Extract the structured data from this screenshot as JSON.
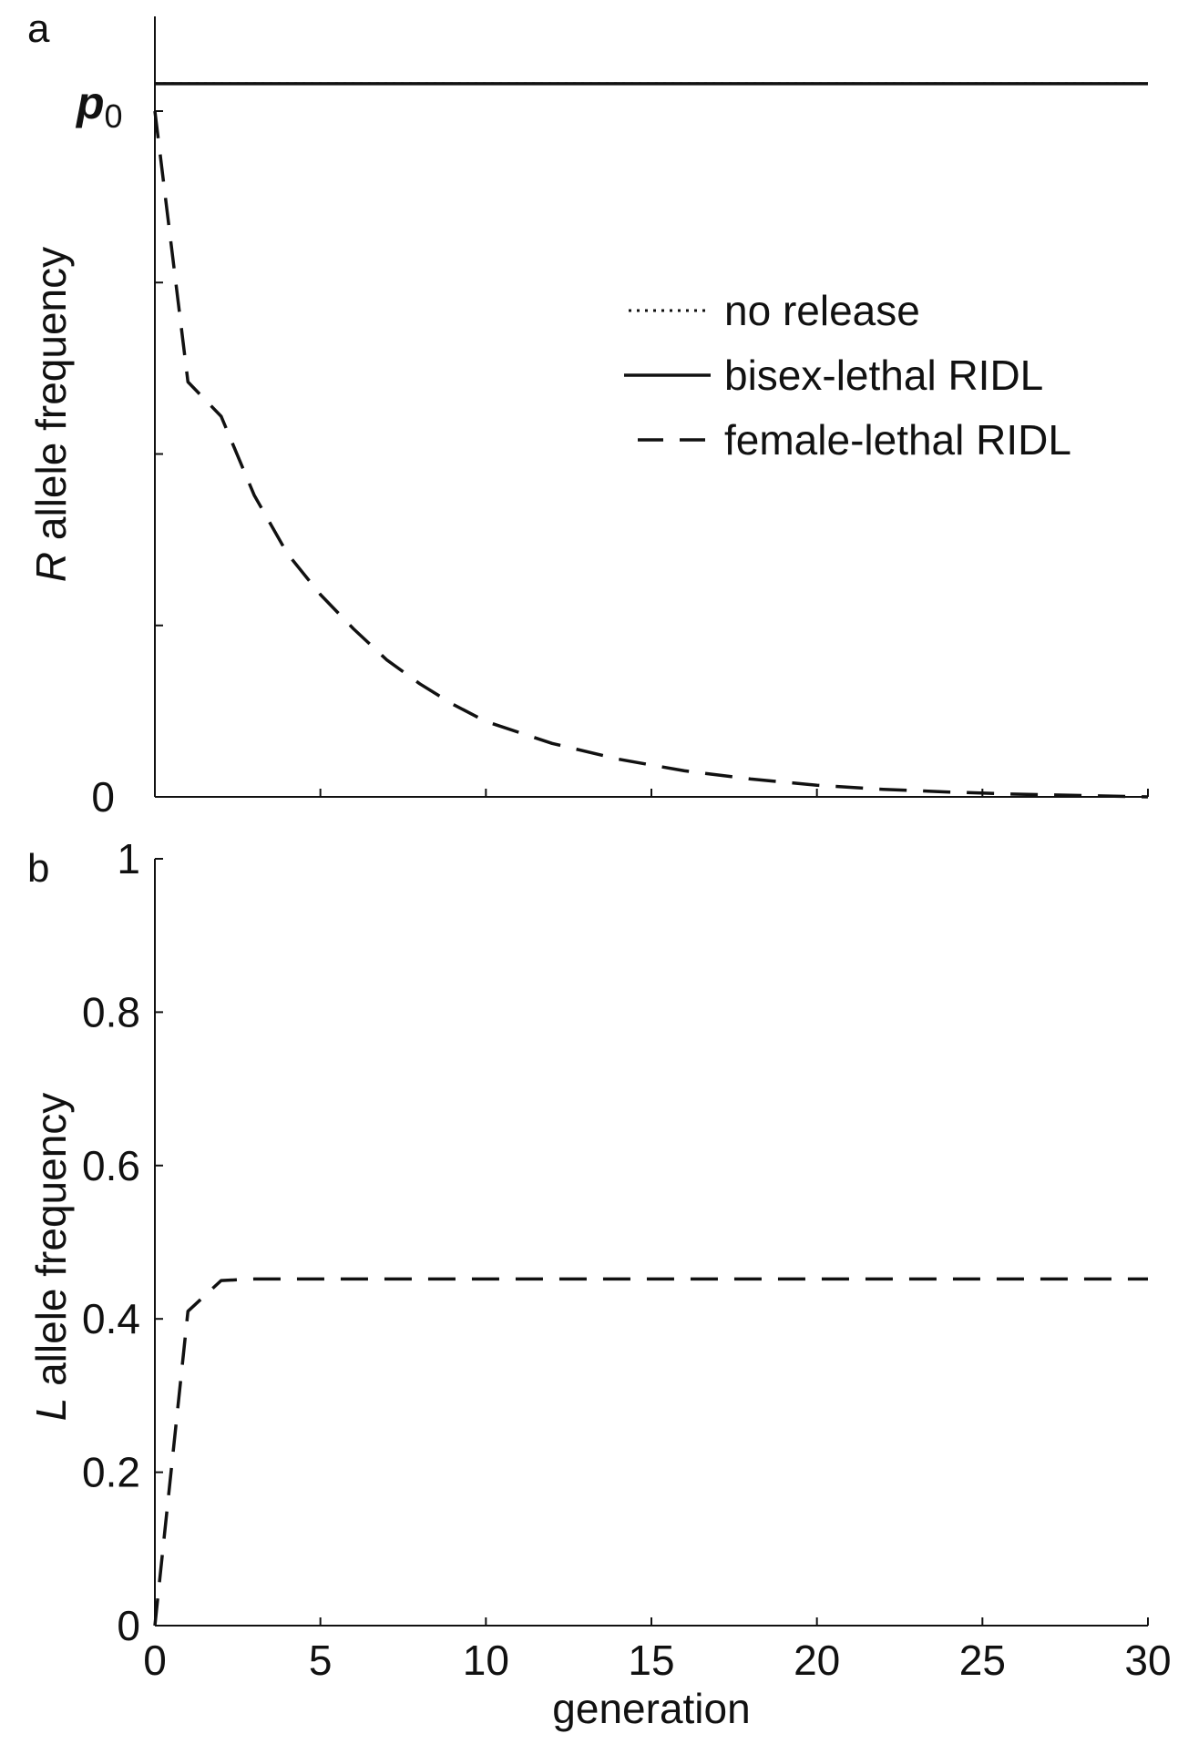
{
  "chart_data": [
    {
      "panel_label": "a",
      "type": "line",
      "ylabel_italic": "R",
      "ylabel_rest": " allele frequency",
      "xlim": [
        0,
        30
      ],
      "ylim_relative_to_p0": [
        0,
        1.04
      ],
      "y_tick_labels": {
        "zero": "0",
        "p0_symbol": "p",
        "p0_subscript": "0"
      },
      "x_ticks": [
        0,
        5,
        10,
        15,
        20,
        25,
        30
      ],
      "legend": {
        "placement": "center-right",
        "entries": [
          {
            "label": "no release",
            "style": "dotted"
          },
          {
            "label": "bisex-lethal RIDL",
            "style": "solid"
          },
          {
            "label": "female-lethal RIDL",
            "style": "dashed"
          }
        ]
      },
      "series": [
        {
          "name": "no release",
          "style": "dotted",
          "x": [
            0,
            30
          ],
          "y": [
            1.04,
            1.04
          ]
        },
        {
          "name": "bisex-lethal RIDL",
          "style": "solid",
          "x": [
            0,
            30
          ],
          "y": [
            1.04,
            1.04
          ]
        },
        {
          "name": "female-lethal RIDL",
          "style": "dashed",
          "x": [
            0,
            1,
            2,
            3,
            4,
            5,
            6,
            7,
            8,
            9,
            10,
            12,
            14,
            16,
            18,
            20,
            22,
            24,
            26,
            28,
            30
          ],
          "y": [
            1.0,
            0.605,
            0.555,
            0.44,
            0.355,
            0.295,
            0.245,
            0.2,
            0.165,
            0.135,
            0.11,
            0.078,
            0.055,
            0.038,
            0.026,
            0.017,
            0.011,
            0.007,
            0.004,
            0.002,
            0.0
          ]
        }
      ]
    },
    {
      "panel_label": "b",
      "type": "line",
      "ylabel_italic": "L",
      "ylabel_rest": " allele frequency",
      "xlabel": "generation",
      "xlim": [
        0,
        30
      ],
      "ylim": [
        0,
        1
      ],
      "x_ticks": [
        0,
        5,
        10,
        15,
        20,
        25,
        30
      ],
      "x_tick_labels": [
        "0",
        "5",
        "10",
        "15",
        "20",
        "25",
        "30"
      ],
      "y_ticks": [
        0,
        0.2,
        0.4,
        0.6,
        0.8,
        1
      ],
      "y_tick_labels": [
        "0",
        "0.2",
        "0.4",
        "0.6",
        "0.8",
        "1"
      ],
      "series": [
        {
          "name": "female-lethal RIDL",
          "style": "dashed",
          "x": [
            0,
            1,
            2,
            3,
            5,
            10,
            20,
            30
          ],
          "y": [
            0.0,
            0.41,
            0.45,
            0.452,
            0.452,
            0.452,
            0.452,
            0.452
          ]
        }
      ]
    }
  ]
}
